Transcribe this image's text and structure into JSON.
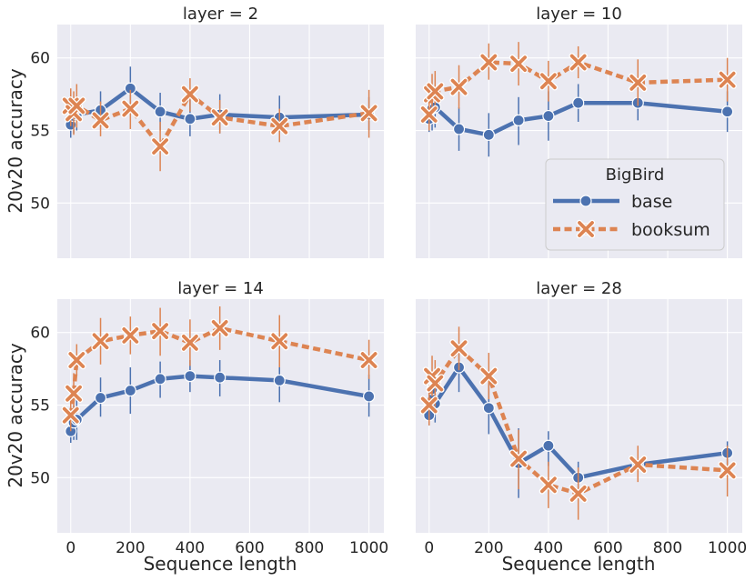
{
  "chart_data": {
    "type": "line",
    "facet_variable": "layer",
    "x": [
      0,
      10,
      20,
      100,
      200,
      300,
      400,
      500,
      700,
      1000
    ],
    "xlabel": "Sequence length",
    "ylabel": "20v20 accuracy",
    "xlim": [
      -45,
      1050
    ],
    "ylim": [
      46.2,
      62.3
    ],
    "xticks": [
      0,
      200,
      400,
      600,
      800,
      1000
    ],
    "yticks": [
      50,
      55,
      60
    ],
    "legend": {
      "title": "BigBird",
      "placement": "center-right of layer = 10 panel",
      "entries": [
        "base",
        "booksum"
      ]
    },
    "colors": {
      "base": "#4c72b0",
      "booksum": "#dd8452"
    },
    "panels": [
      {
        "title": "layer = 2",
        "series": [
          {
            "name": "base",
            "values": [
              55.4,
              56.0,
              56.1,
              56.4,
              57.9,
              56.3,
              55.8,
              56.1,
              55.9,
              56.1
            ],
            "ci_low": [
              54.5,
              54.8,
              55.0,
              55.3,
              56.6,
              55.0,
              54.6,
              54.8,
              54.6,
              55.0
            ],
            "ci_high": [
              56.3,
              57.2,
              57.3,
              57.7,
              59.4,
              57.6,
              57.1,
              57.5,
              57.4,
              57.3
            ]
          },
          {
            "name": "booksum",
            "values": [
              56.7,
              56.2,
              56.7,
              55.7,
              56.5,
              53.9,
              57.5,
              55.9,
              55.3,
              56.2
            ],
            "ci_low": [
              55.3,
              54.7,
              55.2,
              54.6,
              55.1,
              52.2,
              56.3,
              54.8,
              54.2,
              54.5
            ],
            "ci_high": [
              57.9,
              57.7,
              58.2,
              57.0,
              57.8,
              55.6,
              58.6,
              57.1,
              56.5,
              57.8
            ]
          }
        ]
      },
      {
        "title": "layer = 10",
        "series": [
          {
            "name": "base",
            "values": [
              55.8,
              56.5,
              56.6,
              55.1,
              54.7,
              55.7,
              56.0,
              56.9,
              56.9,
              56.3
            ],
            "ci_low": [
              54.9,
              55.0,
              55.2,
              53.6,
              53.2,
              54.0,
              54.3,
              55.6,
              55.7,
              54.9
            ],
            "ci_high": [
              56.8,
              58.0,
              58.0,
              56.6,
              56.2,
              57.3,
              57.7,
              58.2,
              58.2,
              57.7
            ]
          },
          {
            "name": "booksum",
            "values": [
              56.1,
              57.5,
              57.7,
              58.0,
              59.7,
              59.6,
              58.4,
              59.7,
              58.3,
              58.5
            ],
            "ci_low": [
              55.0,
              56.1,
              56.3,
              56.5,
              58.5,
              58.1,
              57.0,
              58.6,
              56.7,
              57.0
            ],
            "ci_high": [
              57.2,
              58.9,
              59.1,
              59.5,
              61.0,
              61.1,
              59.8,
              60.8,
              59.9,
              60.0
            ]
          }
        ]
      },
      {
        "title": "layer = 14",
        "series": [
          {
            "name": "base",
            "values": [
              53.2,
              53.8,
              54.0,
              55.5,
              56.0,
              56.8,
              57.0,
              56.9,
              56.7,
              55.6
            ],
            "ci_low": [
              52.4,
              52.6,
              52.6,
              54.2,
              54.4,
              55.5,
              55.9,
              55.6,
              55.2,
              54.2
            ],
            "ci_high": [
              54.0,
              55.0,
              55.4,
              56.9,
              57.6,
              58.0,
              58.1,
              58.1,
              58.2,
              57.1
            ]
          },
          {
            "name": "booksum",
            "values": [
              54.3,
              55.8,
              58.1,
              59.4,
              59.8,
              60.1,
              59.3,
              60.3,
              59.4,
              58.1
            ],
            "ci_low": [
              53.2,
              54.4,
              57.0,
              57.8,
              58.5,
              58.4,
              57.7,
              58.8,
              57.6,
              56.8
            ],
            "ci_high": [
              55.4,
              57.2,
              59.2,
              61.0,
              61.1,
              61.7,
              60.9,
              61.8,
              61.2,
              59.5
            ]
          }
        ]
      },
      {
        "title": "layer = 28",
        "series": [
          {
            "name": "base",
            "values": [
              54.3,
              56.1,
              55.1,
              57.6,
              54.8,
              51.0,
              52.2,
              50.0,
              50.9,
              51.7
            ],
            "ci_low": [
              53.6,
              55.1,
              53.8,
              55.9,
              53.0,
              48.6,
              50.8,
              48.9,
              49.8,
              50.9
            ],
            "ci_high": [
              54.9,
              57.1,
              56.4,
              59.3,
              56.5,
              53.4,
              53.2,
              51.1,
              52.0,
              52.5
            ]
          },
          {
            "name": "booksum",
            "values": [
              55.0,
              57.0,
              56.5,
              58.9,
              57.0,
              51.3,
              49.5,
              48.9,
              50.9,
              50.5
            ],
            "ci_low": [
              53.6,
              55.6,
              54.9,
              57.4,
              55.4,
              49.2,
              47.9,
              47.1,
              49.7,
              48.7
            ],
            "ci_high": [
              56.4,
              58.4,
              58.1,
              60.4,
              58.6,
              53.3,
              51.1,
              50.7,
              52.2,
              52.2
            ]
          }
        ]
      }
    ]
  }
}
